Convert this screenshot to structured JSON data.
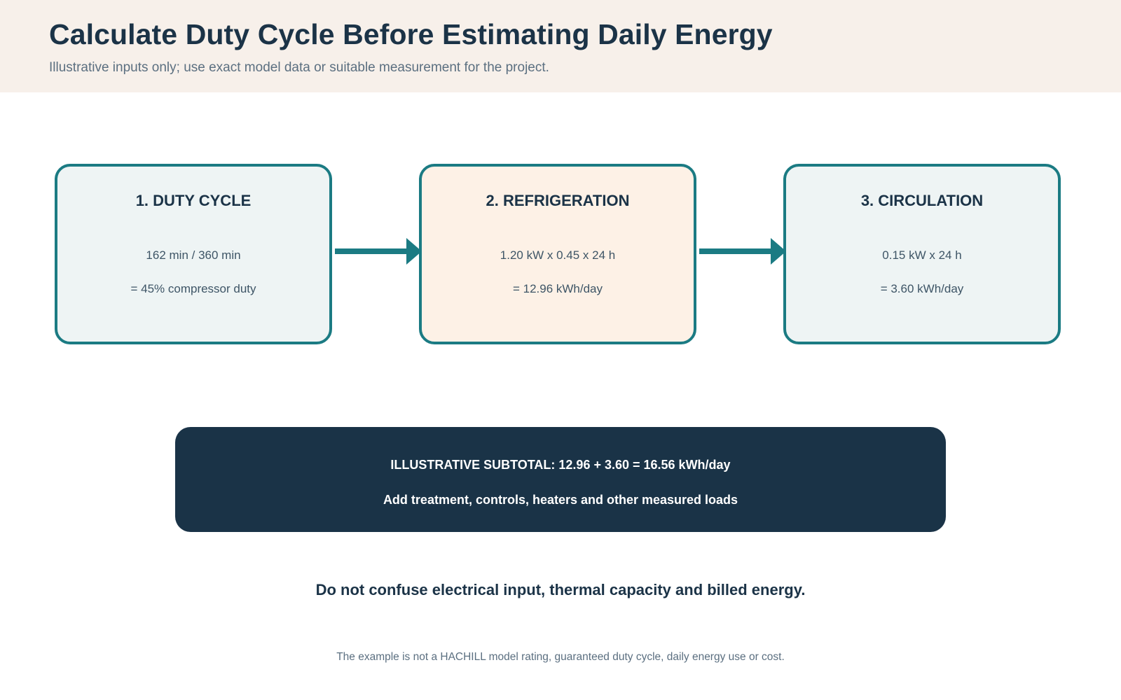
{
  "header": {
    "title": "Calculate Duty Cycle Before Estimating Daily Energy",
    "subtitle": "Illustrative inputs only; use exact model data or suitable measurement for the project."
  },
  "steps": [
    {
      "title": "1. DUTY CYCLE",
      "line1": "162 min / 360 min",
      "line2": "= 45% compressor duty"
    },
    {
      "title": "2. REFRIGERATION",
      "line1": "1.20 kW x 0.45 x 24 h",
      "line2": "= 12.96 kWh/day"
    },
    {
      "title": "3. CIRCULATION",
      "line1": "0.15 kW x 24 h",
      "line2": "= 3.60 kWh/day"
    }
  ],
  "summary": {
    "line1": "ILLUSTRATIVE SUBTOTAL: 12.96 + 3.60 = 16.56 kWh/day",
    "line2": "Add treatment, controls, heaters and other measured loads"
  },
  "warning": "Do not confuse electrical input, thermal capacity and billed energy.",
  "footnote": "The example is not a HACHILL model rating, guaranteed duty cycle, daily energy use or cost.",
  "colors": {
    "header_bg": "#f7f0ea",
    "accent_teal": "#1b7b83",
    "navy": "#1a3347",
    "box_light_teal": "#eef4f4",
    "box_light_peach": "#fdf1e6"
  }
}
